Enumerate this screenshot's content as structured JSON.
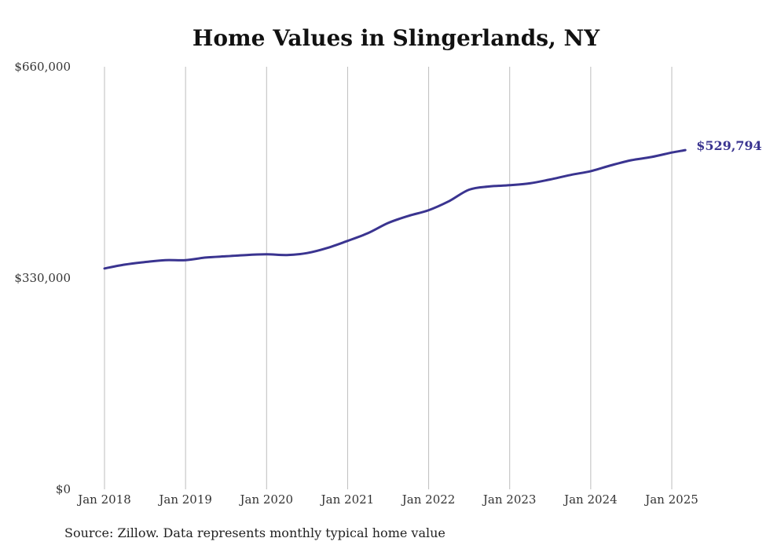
{
  "chart_data": {
    "type": "line",
    "title": "Home Values in Slingerlands, NY",
    "source": "Source: Zillow. Data represents monthly typical home value",
    "ylim": [
      0,
      660000
    ],
    "y_ticks": [
      {
        "value": 0,
        "label": "$0"
      },
      {
        "value": 330000,
        "label": "$330,000"
      },
      {
        "value": 660000,
        "label": "$660,000"
      }
    ],
    "x_ticks": [
      {
        "value": "2018-01",
        "label": "Jan 2018"
      },
      {
        "value": "2019-01",
        "label": "Jan 2019"
      },
      {
        "value": "2020-01",
        "label": "Jan 2020"
      },
      {
        "value": "2021-01",
        "label": "Jan 2021"
      },
      {
        "value": "2022-01",
        "label": "Jan 2022"
      },
      {
        "value": "2023-01",
        "label": "Jan 2023"
      },
      {
        "value": "2024-01",
        "label": "Jan 2024"
      },
      {
        "value": "2025-01",
        "label": "Jan 2025"
      }
    ],
    "xlim": [
      "2018-01",
      "2025-03"
    ],
    "grid": "vertical",
    "end_label": "$529,794",
    "line_color": "#3a3490",
    "series": [
      {
        "points": [
          [
            "2018-01",
            345000
          ],
          [
            "2018-04",
            351000
          ],
          [
            "2018-07",
            355000
          ],
          [
            "2018-10",
            358000
          ],
          [
            "2019-01",
            358000
          ],
          [
            "2019-04",
            362000
          ],
          [
            "2019-07",
            364000
          ],
          [
            "2019-10",
            366000
          ],
          [
            "2020-01",
            367000
          ],
          [
            "2020-04",
            366000
          ],
          [
            "2020-07",
            369000
          ],
          [
            "2020-10",
            377000
          ],
          [
            "2021-01",
            388000
          ],
          [
            "2021-04",
            400000
          ],
          [
            "2021-07",
            416000
          ],
          [
            "2021-10",
            427000
          ],
          [
            "2022-01",
            436000
          ],
          [
            "2022-04",
            450000
          ],
          [
            "2022-07",
            468000
          ],
          [
            "2022-10",
            473000
          ],
          [
            "2023-01",
            475000
          ],
          [
            "2023-04",
            478000
          ],
          [
            "2023-07",
            484000
          ],
          [
            "2023-10",
            491000
          ],
          [
            "2024-01",
            497000
          ],
          [
            "2024-04",
            506000
          ],
          [
            "2024-07",
            514000
          ],
          [
            "2024-10",
            519000
          ],
          [
            "2025-01",
            526000
          ],
          [
            "2025-03",
            529794
          ]
        ]
      }
    ]
  }
}
